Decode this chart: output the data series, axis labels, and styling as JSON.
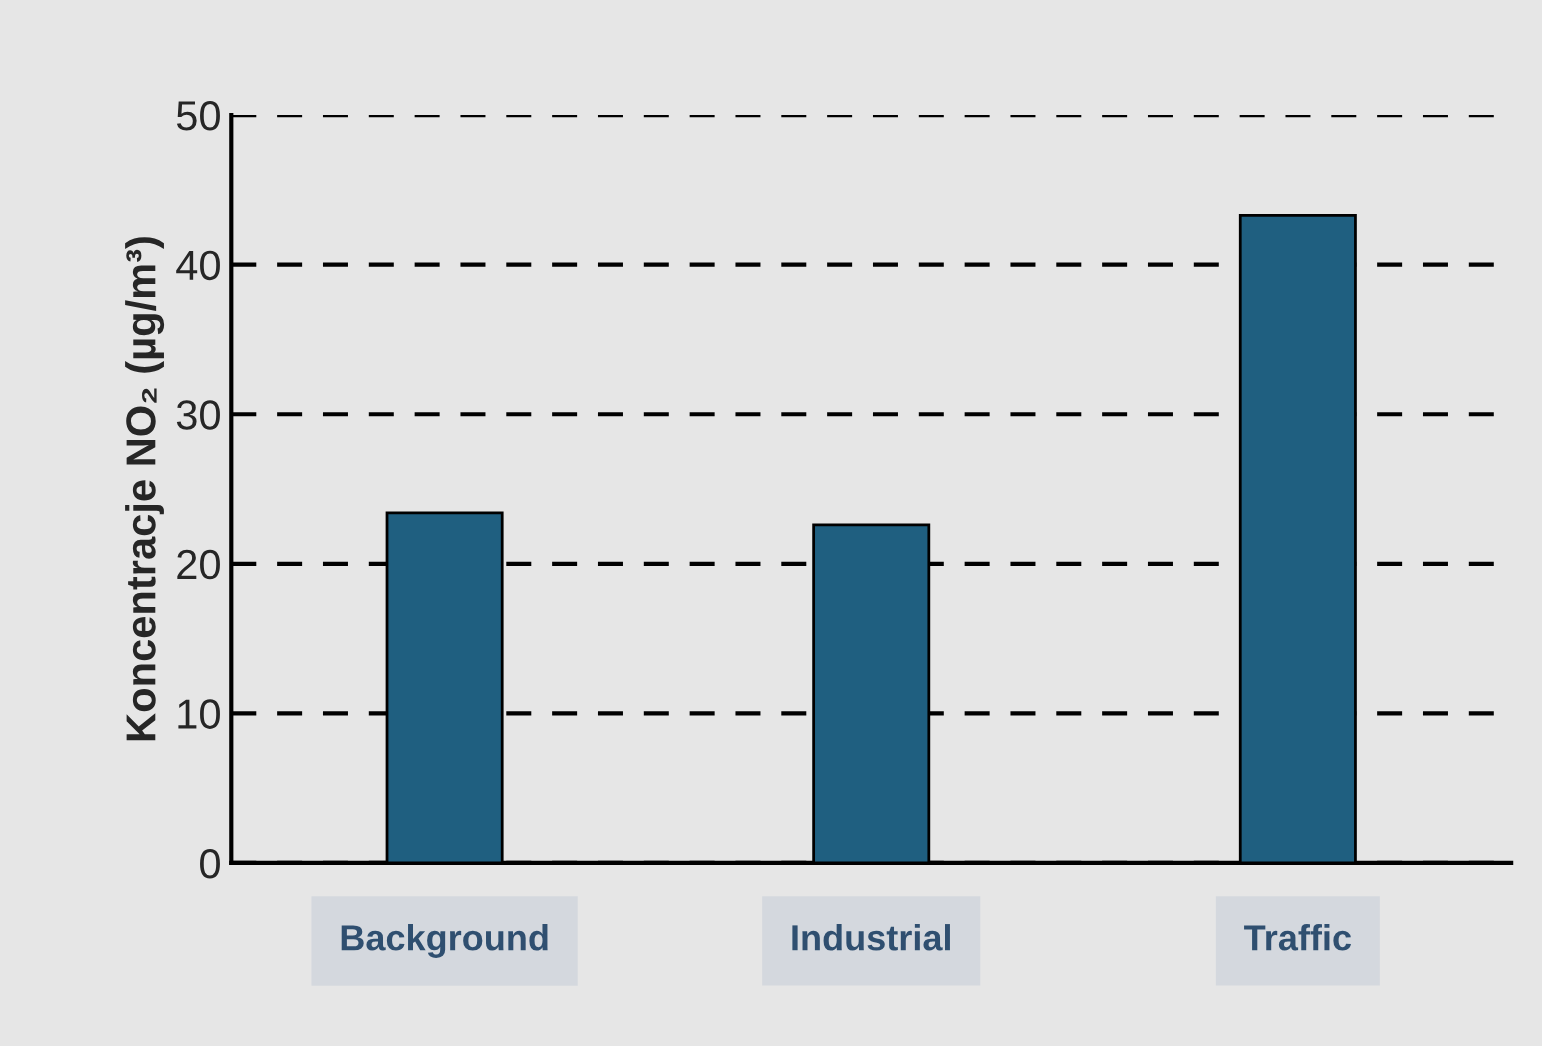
{
  "chart_data": {
    "type": "bar",
    "ylabel": "Koncentracje NO₂ (µg/m³)",
    "categories": [
      "Background",
      "Industrial",
      "Traffic"
    ],
    "values": [
      23.4,
      22.6,
      43.3
    ],
    "color": "#1f5f80",
    "ylim": [
      0,
      50
    ],
    "yticks": [
      0,
      10,
      20,
      30,
      40,
      50
    ],
    "grid": "y",
    "line_style": "dashed",
    "legend": false
  }
}
